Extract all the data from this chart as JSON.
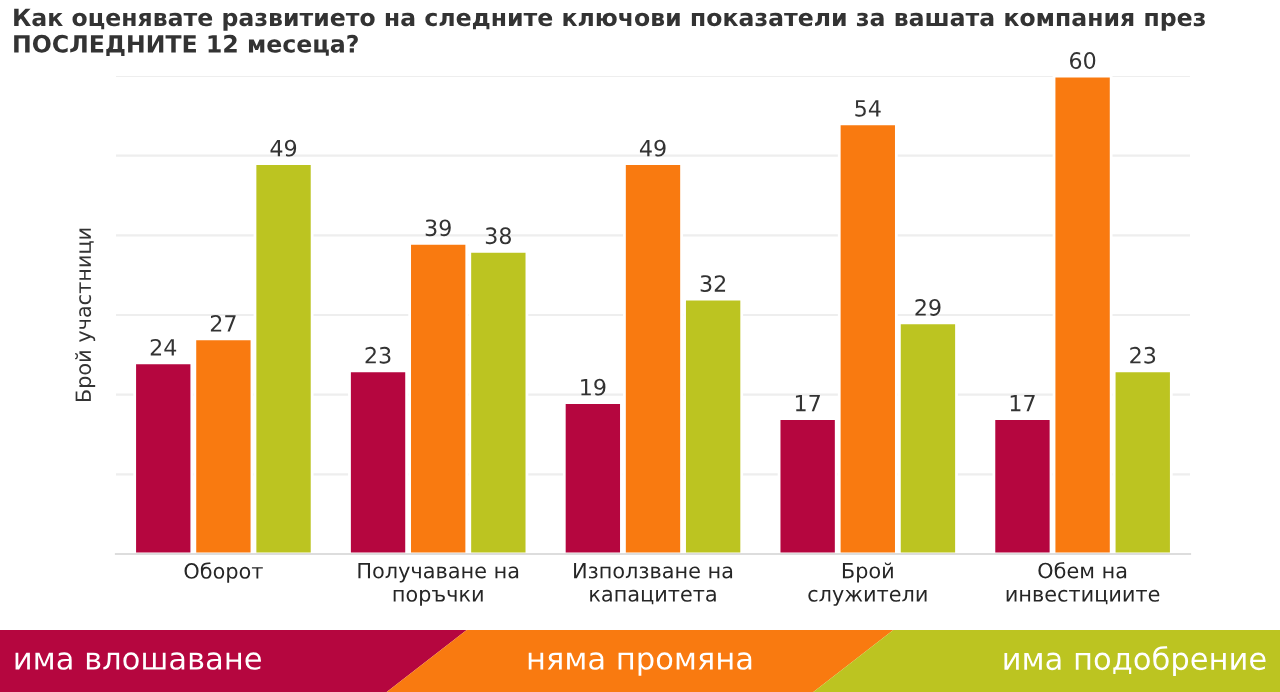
{
  "chart_data": {
    "type": "bar",
    "title": "Как оценявате развитието на следните ключови показатели за вашата компания през ПОСЛЕДНИТЕ 12 месеца?",
    "ylabel": "Брой участници",
    "categories": [
      "Оборот",
      "Получаване на\nпоръчки",
      "Използване на\nкапацитета",
      "Брой\nслужители",
      "Обем на\nинвестициите"
    ],
    "series": [
      {
        "name": "има влошаване",
        "color": "#b5063f",
        "values": [
          24,
          23,
          19,
          17,
          17
        ]
      },
      {
        "name": "няма промяна",
        "color": "#f97a10",
        "values": [
          27,
          39,
          49,
          54,
          60
        ]
      },
      {
        "name": "има подобрение",
        "color": "#bcc421",
        "values": [
          49,
          38,
          32,
          29,
          23
        ]
      }
    ],
    "ylim": [
      0,
      60
    ],
    "yticks": [
      {
        "value": 0,
        "label": null
      },
      {
        "value": 10,
        "label": null
      },
      {
        "value": 20,
        "label": null
      },
      {
        "value": 30,
        "label": null
      },
      {
        "value": 40,
        "label": null
      },
      {
        "value": 50,
        "label": null
      },
      {
        "value": 60,
        "label": null
      }
    ],
    "grid": "y",
    "data_labels": true,
    "legend": "bottom"
  }
}
